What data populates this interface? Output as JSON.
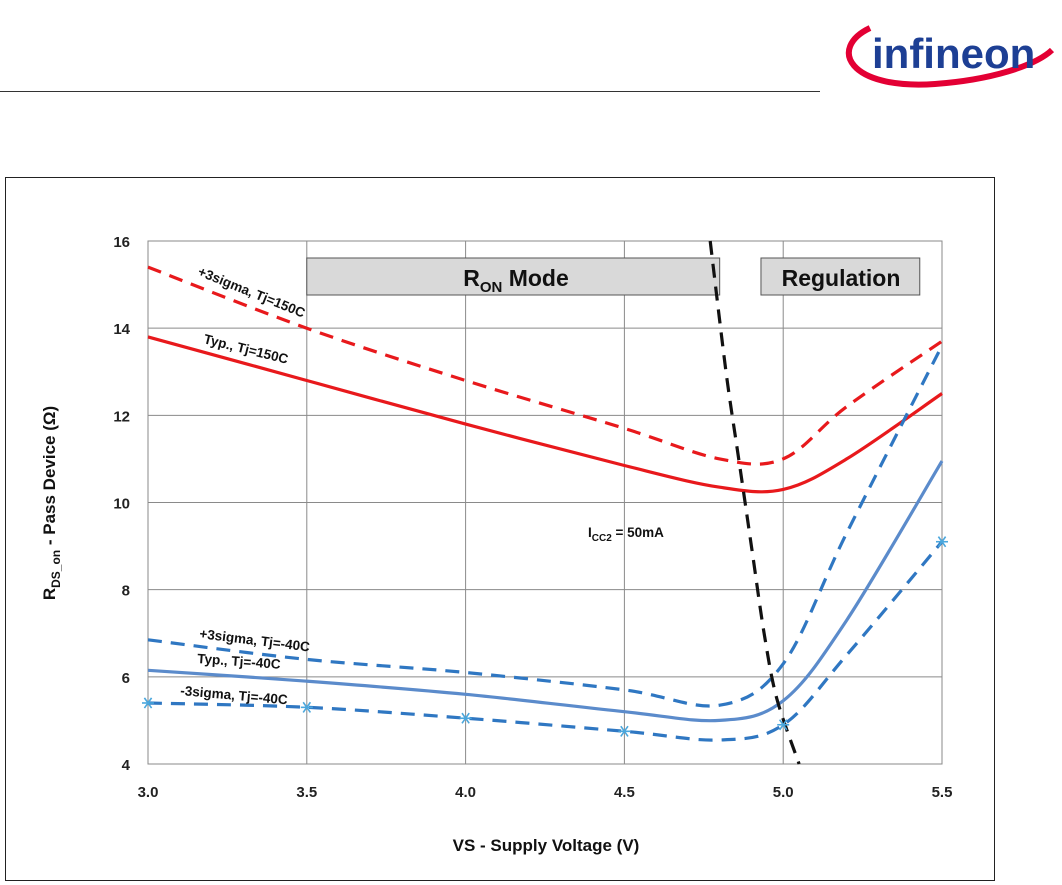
{
  "header": {
    "brand": "infineon",
    "brand_color": "#1d3f94",
    "swoosh_color": "#e30034"
  },
  "chart_data": {
    "type": "line",
    "xlabel": "VS - Supply Voltage (V)",
    "ylabel": {
      "main": "R",
      "sub": "DS_on",
      "rest": " - Pass Device (Ω)"
    },
    "xlim": [
      3.0,
      5.5
    ],
    "ylim": [
      4,
      16
    ],
    "xticks": [
      "3.0",
      "3.5",
      "4.0",
      "4.5",
      "5.0",
      "5.5"
    ],
    "yticks": [
      "4",
      "6",
      "8",
      "10",
      "12",
      "14",
      "16"
    ],
    "grid": true,
    "regions": [
      {
        "name": "ron",
        "label_main": "R",
        "label_sub": "ON",
        "label_rest": " Mode",
        "x": [
          3.5,
          4.8
        ]
      },
      {
        "name": "regulation",
        "label": "Regulation",
        "x": [
          4.93,
          5.43
        ]
      }
    ],
    "series": [
      {
        "name": "plus3sigma-150",
        "label": "+3sigma, Tj=150C",
        "color": "#e8191c",
        "dash": true,
        "x": [
          3.0,
          3.5,
          4.0,
          4.5,
          4.8,
          5.0,
          5.2,
          5.5
        ],
        "y": [
          15.4,
          14.0,
          12.8,
          11.7,
          11.0,
          11.0,
          12.2,
          13.7
        ]
      },
      {
        "name": "typ-150",
        "label": "Typ., Tj=150C",
        "color": "#e8191c",
        "dash": false,
        "x": [
          3.0,
          3.5,
          4.0,
          4.5,
          4.8,
          5.0,
          5.2,
          5.5
        ],
        "y": [
          13.8,
          12.8,
          11.8,
          10.85,
          10.35,
          10.3,
          11.0,
          12.5
        ]
      },
      {
        "name": "plus3sigma-m40",
        "label": "+3sigma, Tj=-40C",
        "color": "#2f77c2",
        "dash": true,
        "x": [
          3.0,
          3.5,
          4.0,
          4.5,
          4.8,
          5.0,
          5.2,
          5.5
        ],
        "y": [
          6.85,
          6.4,
          6.1,
          5.7,
          5.35,
          6.3,
          9.3,
          13.6
        ]
      },
      {
        "name": "typ-m40",
        "label": "Typ., Tj=-40C",
        "color": "#5b8bcb",
        "dash": false,
        "x": [
          3.0,
          3.5,
          4.0,
          4.5,
          4.8,
          5.0,
          5.2,
          5.5
        ],
        "y": [
          6.15,
          5.9,
          5.6,
          5.2,
          5.0,
          5.45,
          7.3,
          10.95
        ]
      },
      {
        "name": "minus3sigma-m40",
        "label": "-3sigma, Tj=-40C",
        "color": "#2f77c2",
        "dash": true,
        "x": [
          3.0,
          3.5,
          4.0,
          4.5,
          4.8,
          5.0,
          5.2,
          5.5
        ],
        "y": [
          5.4,
          5.3,
          5.05,
          4.75,
          4.55,
          4.9,
          6.5,
          9.1
        ]
      },
      {
        "name": "icc2-50ma",
        "label_main": "I",
        "label_sub": "CC2",
        "label_rest": " = 50mA",
        "color": "#111111",
        "dash": true,
        "x": [
          4.77,
          4.82,
          4.86,
          4.9,
          4.94,
          4.98,
          5.05
        ],
        "y": [
          16.0,
          13.0,
          11.0,
          9.0,
          7.0,
          5.5,
          4.0
        ]
      }
    ],
    "markers": {
      "series": "minus3sigma-m40",
      "color": "#4aa7dd",
      "x": [
        3.0,
        3.5,
        4.0,
        4.5,
        5.0,
        5.5
      ],
      "y": [
        5.4,
        5.3,
        5.05,
        4.75,
        4.9,
        9.1
      ]
    }
  }
}
